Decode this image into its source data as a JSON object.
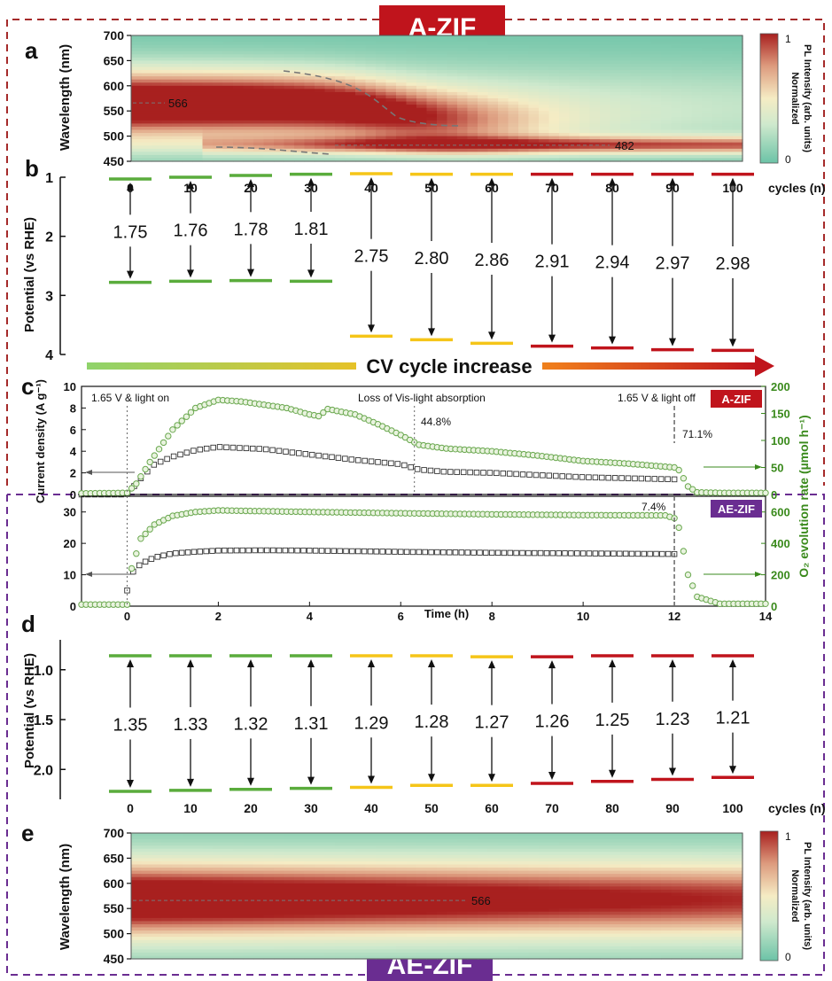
{
  "labels": {
    "top_badge": "A-ZIF",
    "bottom_badge": "AE-ZIF",
    "cv_arrow": "CV cycle increase",
    "cycles_unit": "cycles (n)"
  },
  "colors": {
    "a_zif": "#c0141c",
    "ae_zif": "#6a2d91",
    "green": "#5aac3c",
    "yellow": "#f5c518",
    "red": "#c0141c",
    "o2_marker": "#6aa84f",
    "current_marker": "#333333"
  },
  "chart_data": [
    {
      "id": "a",
      "panel_letter": "a",
      "type": "heatmap",
      "ylabel": "Wavelength (nm)",
      "ylim": [
        450,
        700
      ],
      "yticks": [
        450,
        500,
        550,
        600,
        650,
        700
      ],
      "x_range_cycles": [
        0,
        100
      ],
      "colorbar": {
        "label_line1": "Normalized",
        "label_line2": "PL Intensity (arb. units)",
        "min_label": "0",
        "max_label": "1"
      },
      "annotations": [
        {
          "text": "566",
          "wavelength": 566
        },
        {
          "text": "482",
          "wavelength": 482
        }
      ]
    },
    {
      "id": "b",
      "panel_letter": "b",
      "type": "bar",
      "ylabel": "Potential (vs RHE)",
      "ylim": [
        4,
        1
      ],
      "yticks": [
        1,
        2,
        3,
        4
      ],
      "categories": [
        "0",
        "10",
        "20",
        "30",
        "40",
        "50",
        "60",
        "70",
        "80",
        "90",
        "100"
      ],
      "values": [
        1.75,
        1.76,
        1.78,
        1.81,
        2.75,
        2.8,
        2.86,
        2.91,
        2.94,
        2.97,
        2.98
      ],
      "value_labels": [
        "1.75",
        "1.76",
        "1.78",
        "1.81",
        "2.75",
        "2.80",
        "2.86",
        "2.91",
        "2.94",
        "2.97",
        "2.98"
      ],
      "top_levels": [
        1.03,
        1.0,
        0.97,
        0.95,
        0.94,
        0.95,
        0.95,
        0.95,
        0.95,
        0.95,
        0.95
      ],
      "bottom_levels": [
        2.78,
        2.76,
        2.75,
        2.76,
        3.69,
        3.75,
        3.81,
        3.86,
        3.89,
        3.92,
        3.93
      ],
      "level_colors": [
        "green",
        "green",
        "green",
        "green",
        "yellow",
        "yellow",
        "yellow",
        "red",
        "red",
        "red",
        "red"
      ]
    },
    {
      "id": "c_top",
      "panel_letter": "c",
      "type": "scatter",
      "badge": "A-ZIF",
      "ylabel": "Current density (A g⁻¹)",
      "ylim": [
        0,
        10
      ],
      "yticks": [
        0,
        2,
        4,
        6,
        8,
        10
      ],
      "y2lim": [
        0,
        200
      ],
      "y2ticks": [
        0,
        50,
        100,
        150,
        200
      ],
      "xlim": [
        -1,
        14
      ],
      "annotations": [
        {
          "text": "1.65 V & light on",
          "time": 0
        },
        {
          "text": "Loss of Vis-light absorption",
          "time": 6.3
        },
        {
          "text": "44.8%",
          "time": 6.4
        },
        {
          "text": "1.65 V & light off",
          "time": 12
        },
        {
          "text": "71.1%",
          "time": 12
        }
      ],
      "series": [
        {
          "role": "current",
          "axis": "left",
          "marker": "square",
          "x": [
            -1,
            0,
            0.3,
            0.6,
            1,
            1.5,
            2,
            2.5,
            3,
            4,
            5,
            6,
            6.4,
            7,
            8,
            9,
            10,
            11,
            12
          ],
          "y": [
            0,
            0,
            1.5,
            2.8,
            3.5,
            4.1,
            4.4,
            4.3,
            4.2,
            3.7,
            3.2,
            2.8,
            2.3,
            2.1,
            2.0,
            1.8,
            1.6,
            1.5,
            1.4
          ]
        },
        {
          "role": "o2",
          "axis": "right",
          "marker": "circle",
          "x": [
            -1,
            0,
            0.2,
            0.5,
            1,
            1.5,
            2,
            2.5,
            3,
            3.5,
            4,
            4.2,
            4.4,
            5,
            5.5,
            6,
            6.4,
            7,
            8,
            9,
            10,
            11,
            12,
            12.1,
            12.3,
            12.5,
            13,
            14
          ],
          "y": [
            2,
            3,
            20,
            60,
            120,
            160,
            175,
            172,
            166,
            160,
            148,
            145,
            158,
            148,
            130,
            110,
            92,
            85,
            80,
            72,
            62,
            57,
            50,
            45,
            15,
            4,
            3,
            3
          ]
        }
      ]
    },
    {
      "id": "c_bottom",
      "type": "scatter",
      "badge": "AE-ZIF",
      "xlabel": "Time (h)",
      "ylabel_right": "O₂ evolution rate (µmol h⁻¹)",
      "ylim": [
        0,
        35
      ],
      "yticks": [
        0,
        10,
        20,
        30
      ],
      "y2lim": [
        0,
        700
      ],
      "y2ticks": [
        0,
        200,
        400,
        600
      ],
      "xlim": [
        -1,
        14
      ],
      "xticks": [
        0,
        2,
        4,
        6,
        8,
        10,
        12,
        14
      ],
      "annotations": [
        {
          "text": "7.4%",
          "time": 12
        }
      ],
      "series": [
        {
          "role": "current",
          "axis": "left",
          "marker": "square",
          "x": [
            0,
            0.1,
            0.3,
            0.6,
            1,
            1.5,
            2,
            3,
            4,
            6,
            8,
            10,
            12
          ],
          "y": [
            5,
            10.5,
            13.5,
            15.5,
            16.8,
            17.3,
            17.7,
            17.8,
            17.7,
            17.3,
            17.0,
            16.8,
            16.6
          ]
        },
        {
          "role": "o2",
          "axis": "right",
          "marker": "circle",
          "x": [
            -1,
            0,
            0.1,
            0.3,
            0.6,
            1,
            1.5,
            2,
            3,
            4,
            6,
            8,
            10,
            11.8,
            12,
            12.1,
            12.3,
            12.5,
            13,
            14
          ],
          "y": [
            10,
            10,
            240,
            430,
            520,
            575,
            600,
            610,
            605,
            600,
            592,
            585,
            580,
            578,
            560,
            500,
            200,
            60,
            15,
            15
          ]
        }
      ]
    },
    {
      "id": "d",
      "panel_letter": "d",
      "type": "bar",
      "ylabel": "Potential (vs RHE)",
      "ylim": [
        2.3,
        0.7
      ],
      "yticks": [
        1.0,
        1.5,
        2.0
      ],
      "ytick_labels": [
        "1.0",
        "1.5",
        "2.0"
      ],
      "categories": [
        "0",
        "10",
        "20",
        "30",
        "40",
        "50",
        "60",
        "70",
        "80",
        "90",
        "100"
      ],
      "values": [
        1.35,
        1.33,
        1.32,
        1.31,
        1.29,
        1.28,
        1.27,
        1.26,
        1.25,
        1.23,
        1.21
      ],
      "value_labels": [
        "1.35",
        "1.33",
        "1.32",
        "1.31",
        "1.29",
        "1.28",
        "1.27",
        "1.26",
        "1.25",
        "1.23",
        "1.21"
      ],
      "top_levels": [
        0.86,
        0.86,
        0.86,
        0.86,
        0.86,
        0.86,
        0.87,
        0.87,
        0.86,
        0.86,
        0.86
      ],
      "bottom_levels": [
        2.22,
        2.21,
        2.2,
        2.19,
        2.18,
        2.16,
        2.16,
        2.14,
        2.12,
        2.1,
        2.08
      ],
      "level_colors": [
        "green",
        "green",
        "green",
        "green",
        "yellow",
        "yellow",
        "yellow",
        "red",
        "red",
        "red",
        "red"
      ]
    },
    {
      "id": "e",
      "panel_letter": "e",
      "type": "heatmap",
      "ylabel": "Wavelength (nm)",
      "ylim": [
        450,
        700
      ],
      "yticks": [
        450,
        500,
        550,
        600,
        650,
        700
      ],
      "x_range_cycles": [
        0,
        100
      ],
      "colorbar": {
        "label_line1": "Normalized",
        "label_line2": "PL Intensity (arb. units)",
        "min_label": "0",
        "max_label": "1"
      },
      "annotations": [
        {
          "text": "566",
          "wavelength": 566
        }
      ]
    }
  ]
}
